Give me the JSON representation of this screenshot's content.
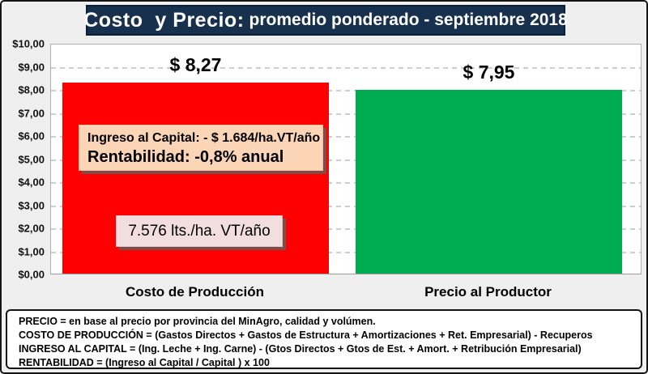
{
  "title": {
    "main": "Costo  y Precio:",
    "sub": "promedio ponderado - septiembre 2018"
  },
  "chart_data": {
    "type": "bar",
    "title": "Costo  y Precio: promedio ponderado - septiembre 2018",
    "categories": [
      "Costo de Producción",
      "Precio al Productor"
    ],
    "values": [
      8.27,
      7.95
    ],
    "bar_labels": [
      "$ 8,27",
      "$ 7,95"
    ],
    "bar_colors": [
      "#FF0000",
      "#00AC50"
    ],
    "ylim": [
      0,
      10
    ],
    "y_tick_step": 1,
    "y_tick_labels": [
      "$10,00",
      "$9,00",
      "$8,00",
      "$7,00",
      "$6,00",
      "$5,00",
      "$4,00",
      "$3,00",
      "$2,00",
      "$1,00",
      "$0,00"
    ],
    "grid": "horizontal-dashed",
    "legend": "none",
    "annotations": [
      {
        "name": "ingreso-rentabilidad",
        "lines": [
          "Ingreso al Capital: - $ 1.684/ha.VT/año",
          "Rentabilidad: -0,8% anual"
        ],
        "bg": "#FBD5B5"
      },
      {
        "name": "litros",
        "lines": [
          "7.576 lts./ha. VT/año"
        ],
        "bg": "#F2DEDE"
      }
    ]
  },
  "footer": {
    "lines": [
      "PRECIO = en base al precio por provincia del MinAgro, calidad y volúmen.",
      "COSTO DE PRODUCCIÓN = (Gastos Directos + Gastos de Estructura + Amortizaciones + Ret. Empresarial) - Recuperos",
      "INGRESO AL CAPITAL = (Ing. Leche + Ing. Carne) - (Gtos Directos + Gtos de Est. + Amort. + Retribución Empresarial)",
      "RENTABILIDAD = (Ingreso al Capital / Capital ) x 100"
    ]
  },
  "colors": {
    "page_bg": "#EFEFEF",
    "title_bg": "#16304E",
    "cost_bar": "#FF0000",
    "price_bar": "#00AC50",
    "gridline": "#C9C9C9",
    "annotation_peach": "#FBD5B5",
    "annotation_pink": "#F2DEDE"
  }
}
